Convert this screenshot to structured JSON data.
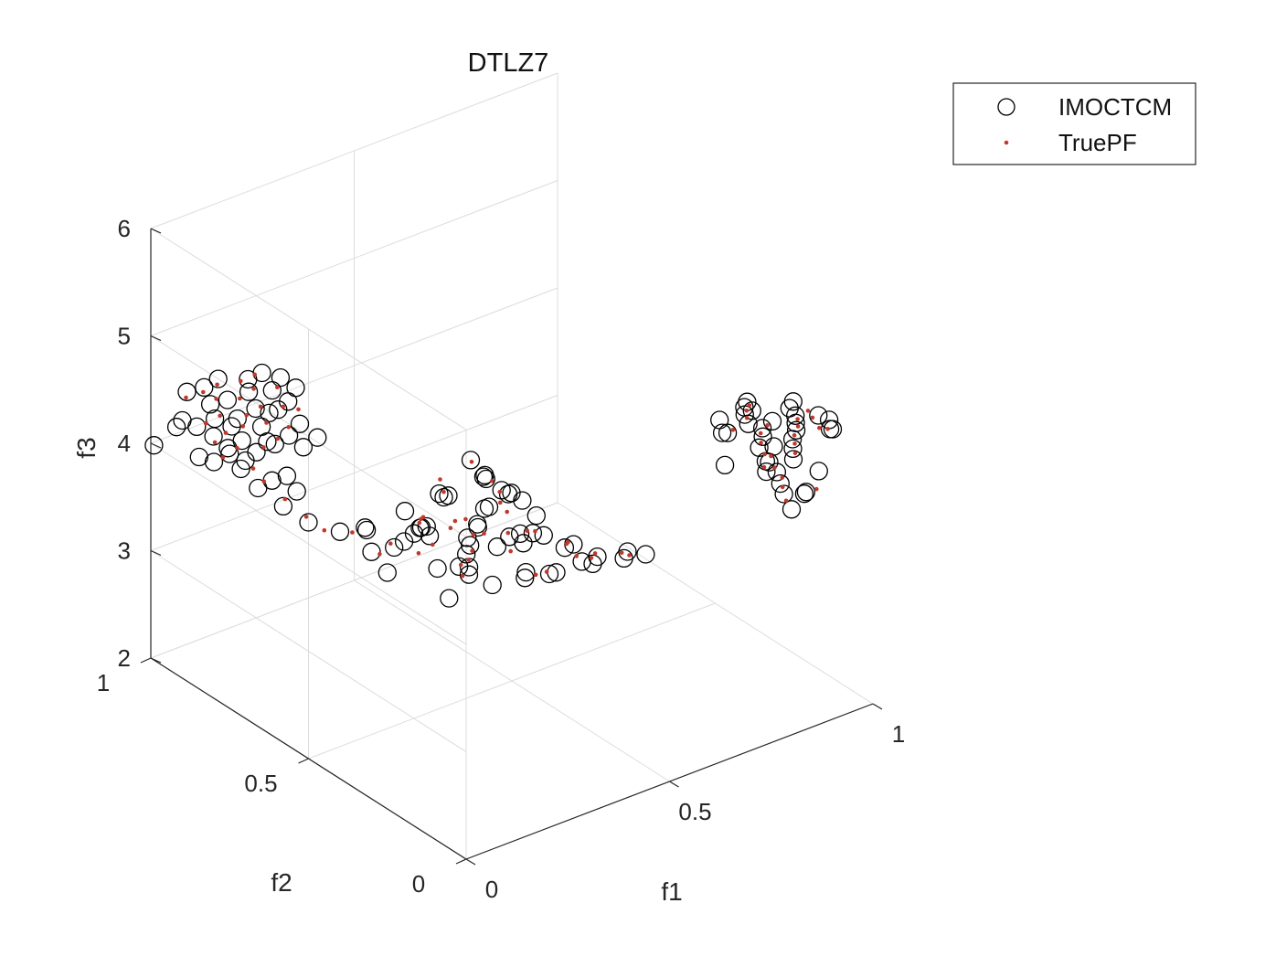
{
  "chart_data": {
    "type": "scatter3d",
    "title": "DTLZ7",
    "xlabel": "f1",
    "ylabel": "f2",
    "zlabel": "f3",
    "xlim": [
      0,
      1
    ],
    "ylim": [
      0,
      1
    ],
    "zlim": [
      2,
      6
    ],
    "xticks": [
      "0",
      "0.5",
      "1"
    ],
    "yticks": [
      "0",
      "0.5",
      "1"
    ],
    "zticks": [
      "2",
      "3",
      "4",
      "5",
      "6"
    ],
    "grid": true,
    "legend_position": "top-right outside",
    "series": [
      {
        "name": "IMOCTCM",
        "marker": "circle",
        "color": "#000000",
        "points": [
          [
            0.05,
            0.05,
            5.55
          ],
          [
            0.08,
            0.04,
            5.35
          ],
          [
            0.1,
            0.07,
            5.3
          ],
          [
            0.12,
            0.1,
            5.2
          ],
          [
            0.15,
            0.05,
            5.1
          ],
          [
            0.05,
            0.15,
            5.05
          ],
          [
            0.18,
            0.12,
            4.95
          ],
          [
            0.2,
            0.08,
            4.9
          ],
          [
            0.22,
            0.15,
            4.8
          ],
          [
            0.1,
            0.2,
            4.85
          ],
          [
            0.25,
            0.1,
            4.65
          ],
          [
            0.15,
            0.25,
            4.7
          ],
          [
            0.2,
            0.2,
            4.6
          ],
          [
            0.25,
            0.25,
            4.45
          ],
          [
            0.02,
            0.22,
            4.8
          ],
          [
            0.05,
            0.18,
            4.6
          ],
          [
            0.08,
            0.25,
            4.5
          ],
          [
            0.12,
            0.28,
            4.4
          ],
          [
            0.03,
            0.03,
            4.55
          ],
          [
            0.06,
            0.1,
            4.45
          ],
          [
            0.1,
            0.12,
            4.35
          ],
          [
            0.14,
            0.18,
            4.3
          ],
          [
            0.18,
            0.22,
            4.25
          ],
          [
            0.22,
            0.02,
            4.3
          ],
          [
            0.26,
            0.05,
            4.2
          ],
          [
            0.22,
            0.28,
            4.15
          ],
          [
            0.28,
            0.18,
            4.2
          ],
          [
            0.02,
            0.08,
            4.25
          ],
          [
            0.16,
            0.02,
            4.35
          ],
          [
            0.08,
            0.02,
            4.4
          ],
          [
            0.0,
            0.3,
            4.3
          ],
          [
            0.04,
            0.28,
            4.32
          ],
          [
            0.08,
            0.3,
            4.28
          ],
          [
            0.12,
            0.32,
            4.26
          ],
          [
            0.0,
            0.4,
            4.3
          ],
          [
            0.05,
            0.38,
            4.28
          ],
          [
            0.0,
            0.25,
            4.2
          ],
          [
            0.1,
            0.22,
            4.15
          ],
          [
            0.24,
            0.12,
            4.1
          ],
          [
            0.27,
            0.25,
            4.05
          ],
          [
            0.0,
            0.8,
            4.2
          ],
          [
            0.05,
            0.82,
            4.22
          ],
          [
            0.1,
            0.84,
            4.18
          ],
          [
            0.15,
            0.8,
            4.15
          ],
          [
            0.2,
            0.82,
            4.12
          ],
          [
            0.25,
            0.85,
            4.1
          ],
          [
            0.02,
            0.88,
            4.35
          ],
          [
            0.08,
            0.9,
            4.3
          ],
          [
            0.12,
            0.88,
            4.28
          ],
          [
            0.18,
            0.9,
            4.25
          ],
          [
            0.22,
            0.88,
            4.22
          ],
          [
            0.26,
            0.9,
            4.2
          ],
          [
            0.05,
            0.95,
            4.5
          ],
          [
            0.1,
            0.96,
            4.45
          ],
          [
            0.15,
            0.98,
            4.42
          ],
          [
            0.2,
            0.95,
            4.4
          ],
          [
            0.25,
            0.97,
            4.35
          ],
          [
            0.28,
            0.95,
            4.3
          ],
          [
            0.03,
            0.85,
            4.6
          ],
          [
            0.08,
            0.86,
            4.55
          ],
          [
            0.14,
            0.87,
            4.52
          ],
          [
            0.19,
            0.86,
            4.48
          ],
          [
            0.24,
            0.85,
            4.45
          ],
          [
            0.0,
            0.9,
            4.4
          ],
          [
            0.27,
            0.82,
            4.0
          ],
          [
            0.22,
            0.8,
            4.02
          ],
          [
            0.17,
            0.85,
            4.05
          ],
          [
            0.12,
            0.82,
            4.08
          ],
          [
            0.07,
            0.84,
            4.1
          ],
          [
            0.01,
            0.86,
            4.12
          ],
          [
            0.1,
            0.93,
            4.05
          ],
          [
            0.16,
            0.95,
            4.02
          ],
          [
            0.21,
            0.92,
            4.0
          ],
          [
            0.26,
            0.96,
            3.98
          ],
          [
            0.04,
            0.97,
            4.15
          ],
          [
            0.0,
            0.99,
            4.0
          ],
          [
            0.8,
            0.0,
            4.1
          ],
          [
            0.82,
            0.05,
            4.12
          ],
          [
            0.85,
            0.1,
            4.08
          ],
          [
            0.88,
            0.15,
            4.05
          ],
          [
            0.9,
            0.2,
            4.02
          ],
          [
            0.95,
            0.25,
            4.0
          ],
          [
            0.8,
            0.08,
            4.3
          ],
          [
            0.83,
            0.12,
            4.28
          ],
          [
            0.86,
            0.18,
            4.25
          ],
          [
            0.9,
            0.22,
            4.22
          ],
          [
            0.93,
            0.26,
            4.18
          ],
          [
            0.97,
            0.28,
            4.15
          ],
          [
            0.82,
            0.02,
            4.5
          ],
          [
            0.85,
            0.06,
            4.48
          ],
          [
            0.88,
            0.1,
            4.45
          ],
          [
            0.92,
            0.14,
            4.4
          ],
          [
            0.95,
            0.18,
            4.35
          ],
          [
            0.98,
            0.22,
            4.3
          ],
          [
            0.81,
            0.15,
            4.6
          ],
          [
            0.84,
            0.2,
            4.55
          ],
          [
            0.87,
            0.24,
            4.5
          ],
          [
            0.9,
            0.27,
            4.45
          ],
          [
            0.94,
            0.05,
            4.55
          ],
          [
            0.97,
            0.1,
            4.5
          ],
          [
            0.86,
            0.28,
            4.2
          ],
          [
            0.91,
            0.02,
            4.65
          ],
          [
            0.99,
            0.16,
            4.4
          ],
          [
            0.83,
            0.25,
            4.0
          ],
          [
            0.89,
            0.07,
            4.0
          ],
          [
            0.96,
            0.12,
            4.0
          ],
          [
            0.95,
            0.2,
            4.45
          ],
          [
            0.99,
            0.24,
            4.38
          ],
          [
            0.92,
            0.28,
            4.32
          ],
          [
            0.87,
            0.05,
            4.05
          ],
          [
            0.8,
            0.22,
            4.4
          ],
          [
            0.84,
            0.28,
            4.35
          ],
          [
            0.3,
            0.02,
            4.3
          ],
          [
            0.32,
            0.1,
            4.25
          ],
          [
            0.35,
            0.05,
            4.15
          ],
          [
            0.4,
            0.1,
            4.05
          ],
          [
            0.45,
            0.08,
            4.0
          ],
          [
            0.28,
            0.15,
            4.35
          ],
          [
            0.33,
            0.18,
            4.2
          ],
          [
            0.38,
            0.15,
            4.1
          ],
          [
            0.42,
            0.03,
            4.2
          ],
          [
            0.48,
            0.05,
            4.05
          ],
          [
            0.3,
            0.25,
            4.1
          ],
          [
            0.26,
            0.3,
            4.18
          ],
          [
            0.35,
            0.28,
            4.0
          ],
          [
            0.0,
            0.5,
            4.2
          ],
          [
            0.0,
            0.58,
            4.2
          ],
          [
            0.0,
            0.66,
            4.22
          ],
          [
            0.05,
            0.68,
            4.18
          ],
          [
            0.02,
            0.74,
            4.22
          ],
          [
            0.0,
            0.7,
            4.4
          ],
          [
            0.04,
            0.62,
            4.35
          ],
          [
            0.01,
            0.55,
            4.38
          ],
          [
            0.3,
            0.35,
            4.0
          ],
          [
            0.2,
            0.4,
            4.05
          ],
          [
            0.1,
            0.45,
            4.1
          ]
        ]
      },
      {
        "name": "TruePF",
        "marker": "dot",
        "color": "#c0392b",
        "points": [
          [
            0.06,
            0.06,
            5.5
          ],
          [
            0.11,
            0.06,
            5.25
          ],
          [
            0.06,
            0.16,
            5.15
          ],
          [
            0.16,
            0.1,
            5.0
          ],
          [
            0.1,
            0.2,
            4.9
          ],
          [
            0.2,
            0.15,
            4.75
          ],
          [
            0.24,
            0.18,
            4.55
          ],
          [
            0.04,
            0.2,
            4.7
          ],
          [
            0.09,
            0.26,
            4.55
          ],
          [
            0.14,
            0.23,
            4.45
          ],
          [
            0.19,
            0.28,
            4.35
          ],
          [
            0.23,
            0.24,
            4.25
          ],
          [
            0.03,
            0.05,
            4.5
          ],
          [
            0.08,
            0.12,
            4.4
          ],
          [
            0.13,
            0.16,
            4.3
          ],
          [
            0.17,
            0.2,
            4.25
          ],
          [
            0.21,
            0.05,
            4.25
          ],
          [
            0.26,
            0.08,
            4.15
          ],
          [
            0.02,
            0.3,
            4.25
          ],
          [
            0.07,
            0.33,
            4.22
          ],
          [
            0.03,
            0.4,
            4.25
          ],
          [
            0.0,
            0.45,
            4.22
          ],
          [
            0.01,
            0.52,
            4.2
          ],
          [
            0.02,
            0.6,
            4.2
          ],
          [
            0.03,
            0.68,
            4.2
          ],
          [
            0.05,
            0.74,
            4.18
          ],
          [
            0.15,
            0.3,
            4.15
          ],
          [
            0.25,
            0.3,
            4.1
          ],
          [
            0.1,
            0.28,
            4.18
          ],
          [
            0.28,
            0.22,
            4.05
          ],
          [
            0.03,
            0.81,
            4.18
          ],
          [
            0.08,
            0.83,
            4.16
          ],
          [
            0.13,
            0.81,
            4.13
          ],
          [
            0.18,
            0.83,
            4.1
          ],
          [
            0.23,
            0.86,
            4.08
          ],
          [
            0.27,
            0.88,
            4.15
          ],
          [
            0.05,
            0.89,
            4.32
          ],
          [
            0.1,
            0.91,
            4.28
          ],
          [
            0.15,
            0.89,
            4.25
          ],
          [
            0.2,
            0.91,
            4.22
          ],
          [
            0.24,
            0.89,
            4.2
          ],
          [
            0.04,
            0.94,
            4.48
          ],
          [
            0.09,
            0.95,
            4.44
          ],
          [
            0.14,
            0.97,
            4.4
          ],
          [
            0.19,
            0.96,
            4.38
          ],
          [
            0.24,
            0.98,
            4.33
          ],
          [
            0.06,
            0.87,
            4.57
          ],
          [
            0.11,
            0.86,
            4.52
          ],
          [
            0.16,
            0.88,
            4.5
          ],
          [
            0.21,
            0.87,
            4.46
          ],
          [
            0.13,
            0.93,
            4.04
          ],
          [
            0.18,
            0.94,
            4.01
          ],
          [
            0.23,
            0.93,
            3.99
          ],
          [
            0.08,
            0.9,
            4.08
          ],
          [
            0.81,
            0.03,
            4.11
          ],
          [
            0.84,
            0.08,
            4.1
          ],
          [
            0.87,
            0.12,
            4.07
          ],
          [
            0.89,
            0.17,
            4.04
          ],
          [
            0.92,
            0.22,
            4.01
          ],
          [
            0.81,
            0.1,
            4.29
          ],
          [
            0.85,
            0.15,
            4.26
          ],
          [
            0.88,
            0.2,
            4.23
          ],
          [
            0.91,
            0.24,
            4.2
          ],
          [
            0.95,
            0.27,
            4.16
          ],
          [
            0.84,
            0.04,
            4.49
          ],
          [
            0.87,
            0.08,
            4.46
          ],
          [
            0.9,
            0.12,
            4.42
          ],
          [
            0.94,
            0.16,
            4.37
          ],
          [
            0.97,
            0.2,
            4.32
          ],
          [
            0.83,
            0.18,
            4.57
          ],
          [
            0.86,
            0.22,
            4.52
          ],
          [
            0.89,
            0.25,
            4.47
          ],
          [
            0.93,
            0.08,
            4.52
          ],
          [
            0.96,
            0.14,
            4.46
          ],
          [
            0.92,
            0.04,
            4.6
          ],
          [
            0.98,
            0.18,
            4.42
          ],
          [
            0.85,
            0.25,
            4.3
          ],
          [
            0.9,
            0.05,
            4.05
          ],
          [
            0.31,
            0.05,
            4.28
          ],
          [
            0.34,
            0.12,
            4.22
          ],
          [
            0.37,
            0.08,
            4.12
          ],
          [
            0.41,
            0.12,
            4.03
          ],
          [
            0.44,
            0.05,
            4.1
          ],
          [
            0.29,
            0.18,
            4.3
          ],
          [
            0.34,
            0.22,
            4.15
          ],
          [
            0.39,
            0.18,
            4.05
          ],
          [
            0.46,
            0.1,
            4.0
          ],
          [
            0.32,
            0.28,
            4.05
          ],
          [
            0.27,
            0.35,
            4.12
          ],
          [
            0.22,
            0.42,
            4.08
          ]
        ]
      }
    ]
  }
}
